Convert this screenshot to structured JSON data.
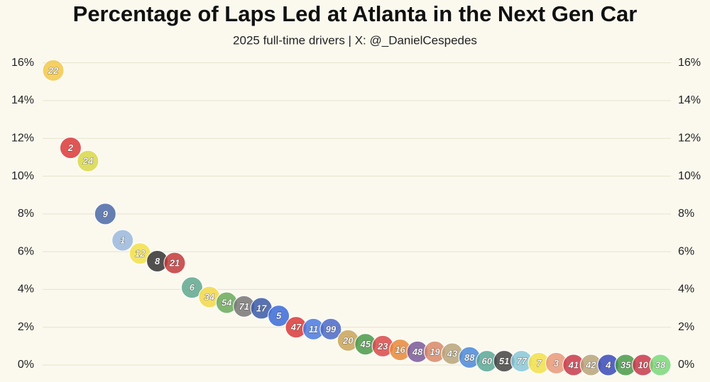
{
  "chart_data": {
    "type": "scatter",
    "title": "Percentage of Laps Led at Atlanta in the Next Gen Car",
    "subtitle": "2025 full-time drivers | X: @_DanielCespedes",
    "categories": [
      "22",
      "2",
      "24",
      "9",
      "1",
      "12",
      "8",
      "21",
      "6",
      "34",
      "54",
      "71",
      "17",
      "5",
      "47",
      "11",
      "99",
      "20",
      "45",
      "23",
      "16",
      "48",
      "19",
      "43",
      "88",
      "60",
      "51",
      "77",
      "7",
      "3",
      "41",
      "42",
      "4",
      "35",
      "10",
      "38"
    ],
    "values": [
      15.6,
      11.5,
      10.8,
      8.0,
      6.6,
      5.9,
      5.5,
      5.4,
      4.1,
      3.6,
      3.3,
      3.1,
      3.0,
      2.6,
      2.0,
      1.9,
      1.9,
      1.3,
      1.1,
      1.0,
      0.8,
      0.7,
      0.7,
      0.6,
      0.4,
      0.2,
      0.2,
      0.2,
      0.1,
      0.1,
      0.0,
      0.0,
      0.0,
      0.0,
      0.0,
      0.0
    ],
    "colors": [
      "#f2c94c",
      "#d93a3a",
      "#d8d84a",
      "#4a6aa8",
      "#9ab8dd",
      "#f2e04a",
      "#333333",
      "#c23a3a",
      "#5fa88f",
      "#f2d84a",
      "#6aaa5a",
      "#777777",
      "#3a5aa8",
      "#3a6ad8",
      "#d83a3a",
      "#4a7ae0",
      "#4a6ac8",
      "#c8a45a",
      "#4a9a4a",
      "#d84a4a",
      "#e88a3a",
      "#7a5a9a",
      "#d88a6a",
      "#b8a47a",
      "#4a8ad8",
      "#5aa898",
      "#444444",
      "#8ac8d8",
      "#f2e04a",
      "#e89a7a",
      "#c83a4a",
      "#b8a47a",
      "#3a4ab8",
      "#4a9a4a",
      "#c83a4a",
      "#7ad87a"
    ],
    "ylim": [
      0,
      16.4
    ],
    "yticks": [
      {
        "value": 0,
        "label": "0%"
      },
      {
        "value": 2,
        "label": "2%"
      },
      {
        "value": 4,
        "label": "4%"
      },
      {
        "value": 6,
        "label": "6%"
      },
      {
        "value": 8,
        "label": "8%"
      },
      {
        "value": 10,
        "label": "10%"
      },
      {
        "value": 12,
        "label": "12%"
      },
      {
        "value": 14,
        "label": "14%"
      },
      {
        "value": 16,
        "label": "16%"
      }
    ],
    "grid": true
  }
}
